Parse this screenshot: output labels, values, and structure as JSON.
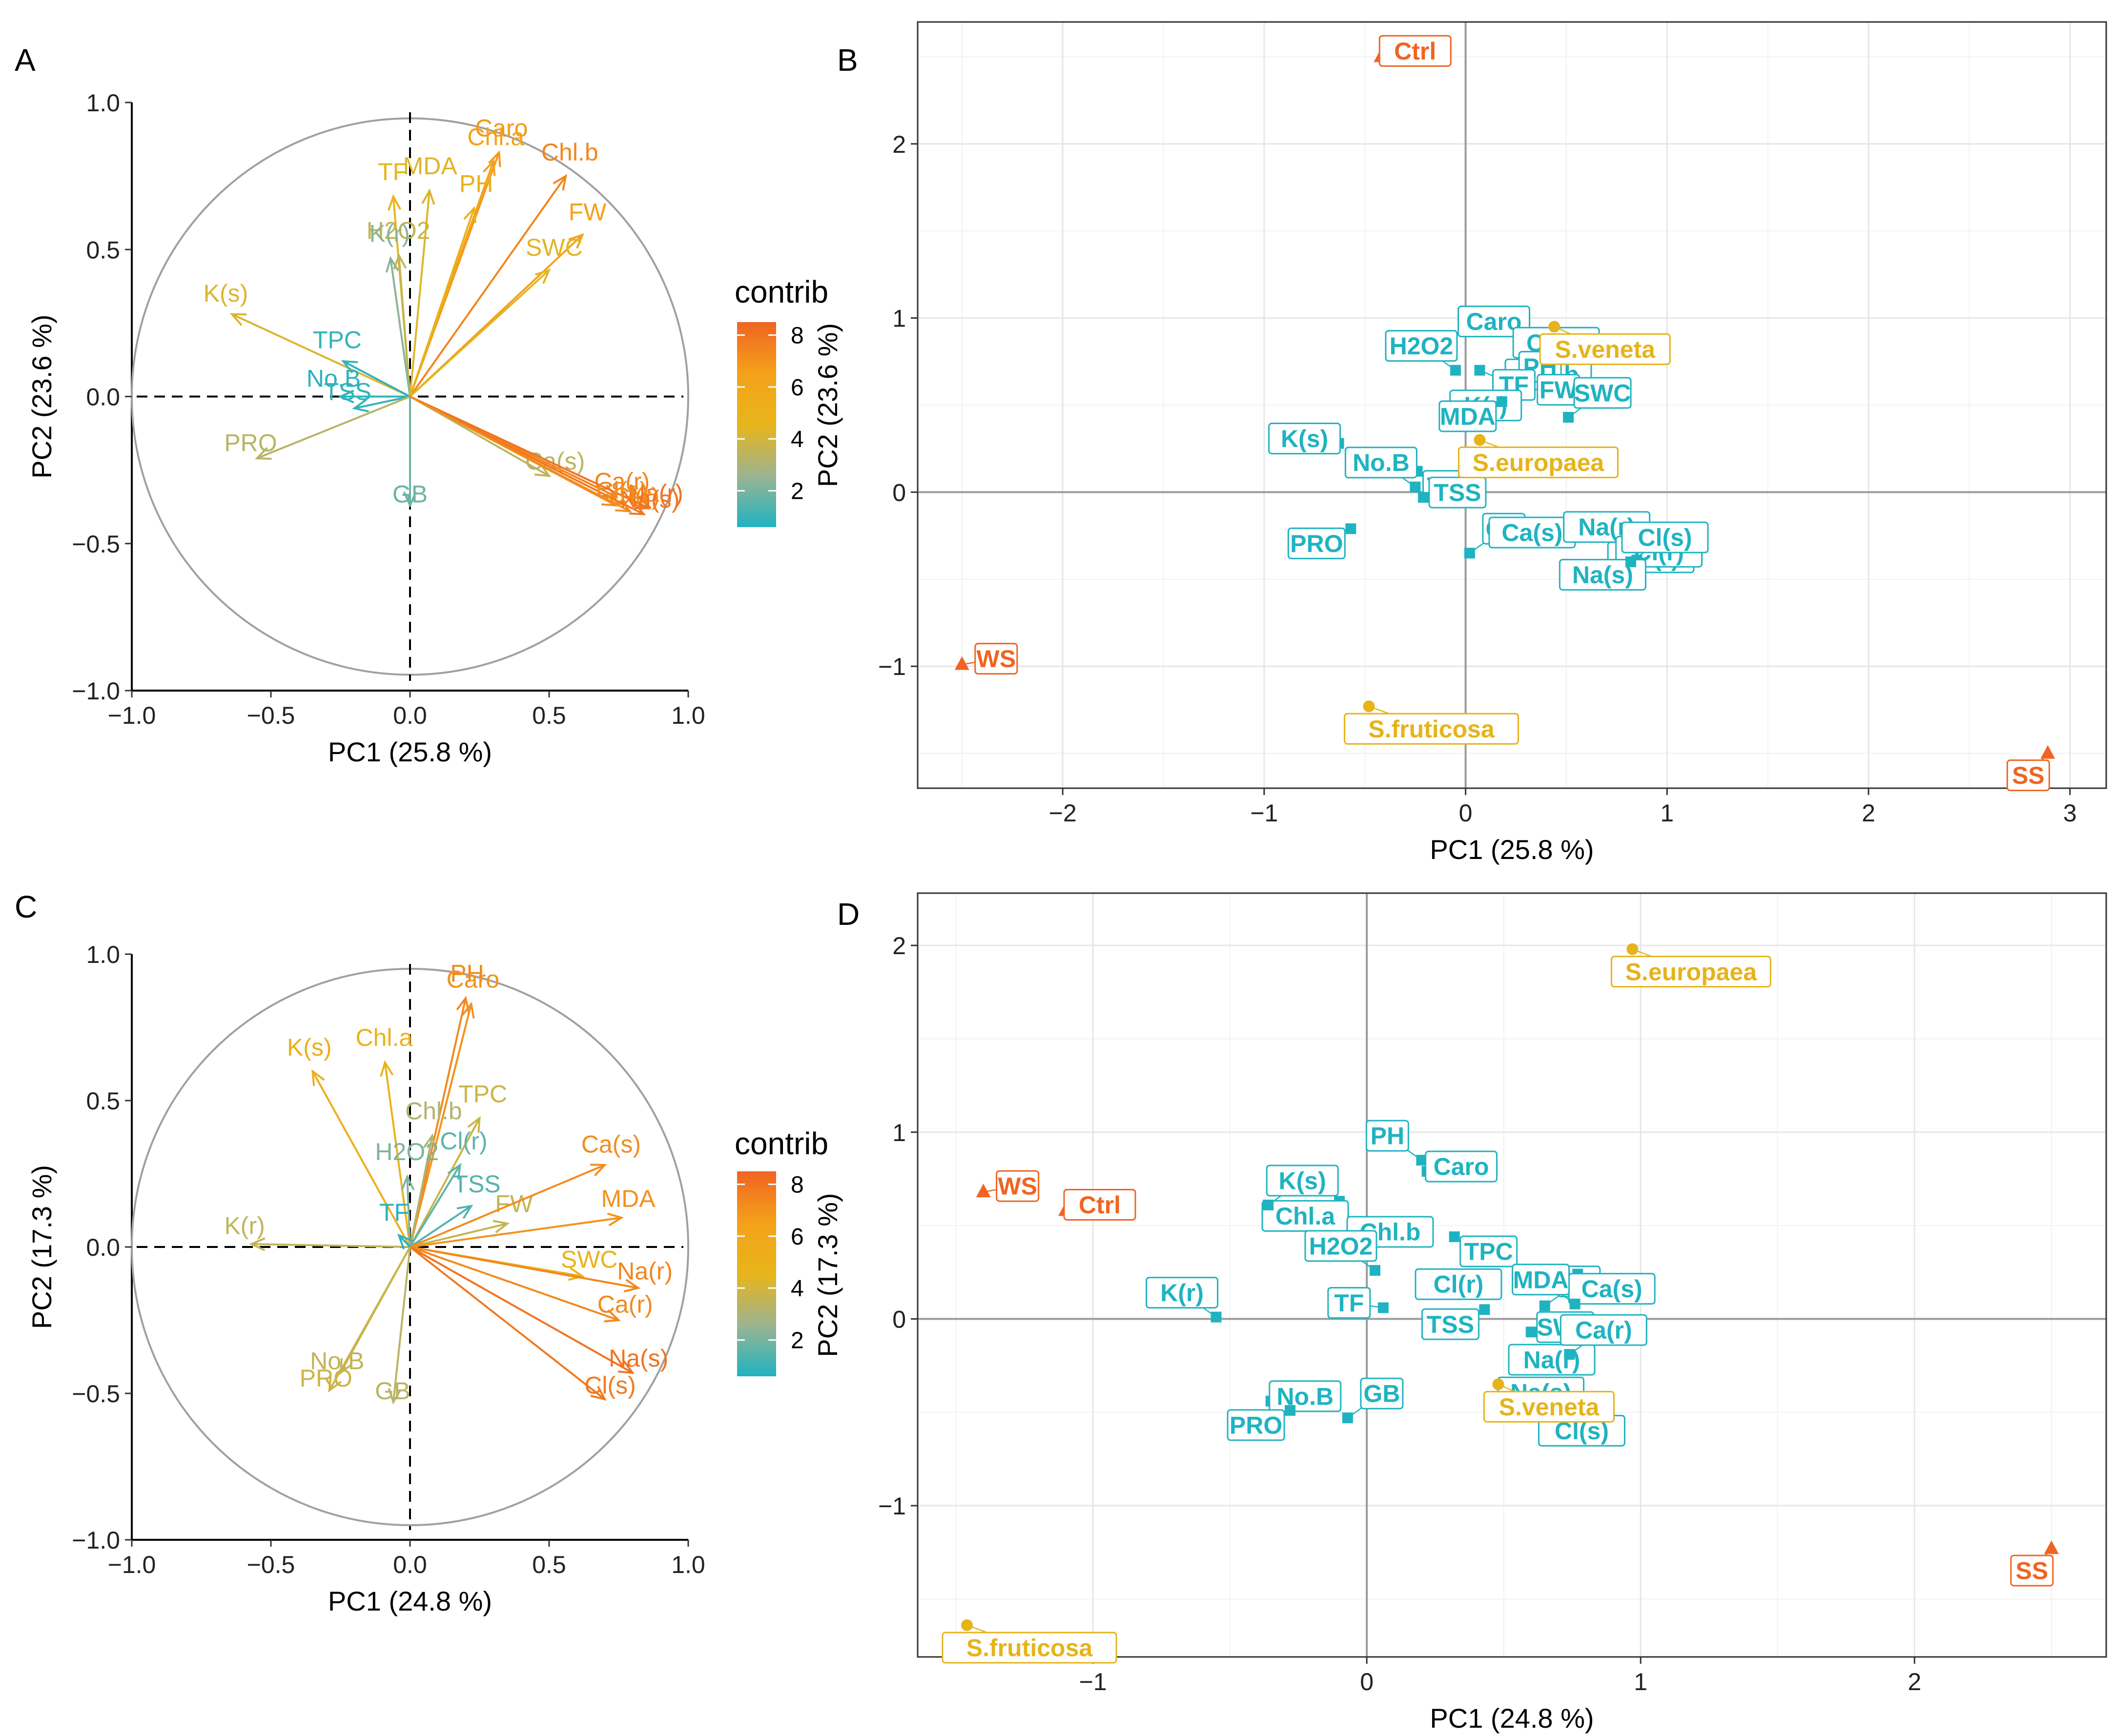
{
  "colors": {
    "teal": "#1fb3c1",
    "orange": "#f06422",
    "gold": "#e6b319",
    "gradient": [
      "#1fb3c1",
      "#9cb490",
      "#e8b51b",
      "#f4a11a",
      "#f06422"
    ]
  },
  "chart_data": [
    {
      "type": "scatter",
      "subtype": "pca-variable-correlation-circle",
      "panel": "A",
      "xlabel": "PC1 (25.8 %)",
      "ylabel": "PC2 (23.6 %)",
      "xlim": [
        -1.0,
        1.0
      ],
      "ylim": [
        -1.0,
        1.0
      ],
      "xticks": [
        -1.0,
        -0.5,
        0.0,
        0.5,
        1.0
      ],
      "yticks": [
        -1.0,
        -0.5,
        0.0,
        0.5,
        1.0
      ],
      "xtick_labels": [
        "−1.0",
        "−0.5",
        "0.0",
        "0.5",
        "1.0"
      ],
      "ytick_labels": [
        "−1.0",
        "−0.5",
        "0.0",
        "0.5",
        "1.0"
      ],
      "legend_title": "contrib",
      "legend_ticks": [
        2,
        4,
        6,
        8
      ],
      "legend_range": [
        0.6,
        8.5
      ],
      "variables": [
        {
          "name": "Caro",
          "x": 0.32,
          "y": 0.83,
          "contrib": 6.8
        },
        {
          "name": "Chl.a",
          "x": 0.3,
          "y": 0.8,
          "contrib": 6.3
        },
        {
          "name": "Chl.b",
          "x": 0.56,
          "y": 0.75,
          "contrib": 7.4
        },
        {
          "name": "PH",
          "x": 0.23,
          "y": 0.64,
          "contrib": 4.8
        },
        {
          "name": "TF",
          "x": -0.06,
          "y": 0.68,
          "contrib": 4.6
        },
        {
          "name": "H2O2",
          "x": -0.04,
          "y": 0.48,
          "contrib": 3.6
        },
        {
          "name": "K(r)",
          "x": -0.07,
          "y": 0.47,
          "contrib": 2.3
        },
        {
          "name": "MDA",
          "x": 0.07,
          "y": 0.7,
          "contrib": 4.3
        },
        {
          "name": "FW",
          "x": 0.62,
          "y": 0.55,
          "contrib": 6.5
        },
        {
          "name": "SWC",
          "x": 0.5,
          "y": 0.43,
          "contrib": 4.4
        },
        {
          "name": "K(s)",
          "x": -0.64,
          "y": 0.28,
          "contrib": 4.2
        },
        {
          "name": "TPC",
          "x": -0.24,
          "y": 0.12,
          "contrib": 0.9
        },
        {
          "name": "No.B",
          "x": -0.25,
          "y": 0.0,
          "contrib": 0.8
        },
        {
          "name": "TSS",
          "x": -0.2,
          "y": -0.04,
          "contrib": 0.9
        },
        {
          "name": "PRO",
          "x": -0.55,
          "y": -0.21,
          "contrib": 3.3
        },
        {
          "name": "GB",
          "x": 0.0,
          "y": -0.37,
          "contrib": 1.8
        },
        {
          "name": "Ca(s)",
          "x": 0.5,
          "y": -0.27,
          "contrib": 3.4
        },
        {
          "name": "Ca(r)",
          "x": 0.74,
          "y": -0.34,
          "contrib": 7.4
        },
        {
          "name": "Na(r)",
          "x": 0.86,
          "y": -0.38,
          "contrib": 8.0
        },
        {
          "name": "Cl(r)",
          "x": 0.79,
          "y": -0.39,
          "contrib": 7.2
        },
        {
          "name": "Na(s)",
          "x": 0.84,
          "y": -0.4,
          "contrib": 7.9
        },
        {
          "name": "Cl(s)",
          "x": 0.74,
          "y": -0.37,
          "contrib": 7.2
        }
      ]
    },
    {
      "type": "scatter",
      "subtype": "pca-biplot-labelled",
      "panel": "B",
      "xlabel": "PC1 (25.8 %)",
      "ylabel": "PC2 (23.6 %)",
      "xlim": [
        -2.72,
        3.18
      ],
      "ylim": [
        -1.7,
        2.7
      ],
      "xticks": [
        -2,
        -1,
        0,
        1,
        2,
        3
      ],
      "yticks": [
        -1,
        0,
        1,
        2
      ],
      "xtick_labels": [
        "−2",
        "−1",
        "0",
        "1",
        "2",
        "3"
      ],
      "ytick_labels": [
        "−1",
        "0",
        "1",
        "2"
      ],
      "treatments": [
        {
          "name": "Ctrl",
          "x": -0.42,
          "y": 2.5
        },
        {
          "name": "WS",
          "x": -2.5,
          "y": -0.99
        },
        {
          "name": "SS",
          "x": 2.89,
          "y": -1.5
        }
      ],
      "species": [
        {
          "name": "S.veneta",
          "x": 0.44,
          "y": 0.95
        },
        {
          "name": "S.europaea",
          "x": 0.07,
          "y": 0.3
        },
        {
          "name": "S.fruticosa",
          "x": -0.48,
          "y": -1.23
        }
      ],
      "variables": [
        {
          "name": "Caro",
          "x": 0.31,
          "y": 0.84
        },
        {
          "name": "Chl.a",
          "x": 0.28,
          "y": 0.83
        },
        {
          "name": "Chl.b",
          "x": 0.58,
          "y": 0.76
        },
        {
          "name": "PH",
          "x": 0.2,
          "y": 0.58
        },
        {
          "name": "FW",
          "x": 0.63,
          "y": 0.56
        },
        {
          "name": "TF",
          "x": 0.07,
          "y": 0.7
        },
        {
          "name": "H2O2",
          "x": -0.05,
          "y": 0.7
        },
        {
          "name": "K(r)",
          "x": -0.07,
          "y": 0.47
        },
        {
          "name": "MDA",
          "x": 0.18,
          "y": 0.52
        },
        {
          "name": "SWC",
          "x": 0.51,
          "y": 0.43
        },
        {
          "name": "K(s)",
          "x": -0.63,
          "y": 0.28
        },
        {
          "name": "TPC",
          "x": -0.24,
          "y": 0.12
        },
        {
          "name": "No.B",
          "x": -0.25,
          "y": 0.03
        },
        {
          "name": "TSS",
          "x": -0.21,
          "y": -0.03
        },
        {
          "name": "PRO",
          "x": -0.57,
          "y": -0.21
        },
        {
          "name": "GB",
          "x": 0.02,
          "y": -0.35
        },
        {
          "name": "Ca(s)",
          "x": 0.5,
          "y": -0.26
        },
        {
          "name": "Ca(r)",
          "x": 0.75,
          "y": -0.29
        },
        {
          "name": "Na(r)",
          "x": 0.87,
          "y": -0.34
        },
        {
          "name": "Cl(r)",
          "x": 0.79,
          "y": -0.37
        },
        {
          "name": "Na(s)",
          "x": 0.85,
          "y": -0.39
        },
        {
          "name": "Cl(s)",
          "x": 0.82,
          "y": -0.4
        }
      ]
    },
    {
      "type": "scatter",
      "subtype": "pca-variable-correlation-circle",
      "panel": "C",
      "xlabel": "PC1 (24.8 %)",
      "ylabel": "PC2 (17.3 %)",
      "xlim": [
        -1.0,
        1.0
      ],
      "ylim": [
        -1.0,
        1.0
      ],
      "xticks": [
        -1.0,
        -0.5,
        0.0,
        0.5,
        1.0
      ],
      "yticks": [
        -1.0,
        -0.5,
        0.0,
        0.5,
        1.0
      ],
      "xtick_labels": [
        "−1.0",
        "−0.5",
        "0.0",
        "0.5",
        "1.0"
      ],
      "ytick_labels": [
        "−1.0",
        "−0.5",
        "0.0",
        "0.5",
        "1.0"
      ],
      "legend_title": "contrib",
      "legend_ticks": [
        2,
        4,
        6,
        8
      ],
      "legend_range": [
        0.6,
        8.5
      ],
      "variables": [
        {
          "name": "PH",
          "x": 0.2,
          "y": 0.85,
          "contrib": 7.3
        },
        {
          "name": "Caro",
          "x": 0.22,
          "y": 0.83,
          "contrib": 7.0
        },
        {
          "name": "Chl.a",
          "x": -0.09,
          "y": 0.63,
          "contrib": 4.8
        },
        {
          "name": "K(s)",
          "x": -0.35,
          "y": 0.6,
          "contrib": 5.2
        },
        {
          "name": "Chl.b",
          "x": 0.08,
          "y": 0.38,
          "contrib": 3.1
        },
        {
          "name": "TPC",
          "x": 0.25,
          "y": 0.44,
          "contrib": 3.8
        },
        {
          "name": "H2O2",
          "x": -0.01,
          "y": 0.24,
          "contrib": 2.1
        },
        {
          "name": "Cl(r)",
          "x": 0.18,
          "y": 0.28,
          "contrib": 1.6
        },
        {
          "name": "TSS",
          "x": 0.22,
          "y": 0.14,
          "contrib": 1.4
        },
        {
          "name": "FW",
          "x": 0.35,
          "y": 0.08,
          "contrib": 3.6
        },
        {
          "name": "Ca(s)",
          "x": 0.7,
          "y": 0.28,
          "contrib": 7.2
        },
        {
          "name": "MDA",
          "x": 0.76,
          "y": 0.1,
          "contrib": 7.0
        },
        {
          "name": "SWC",
          "x": 0.62,
          "y": -0.1,
          "contrib": 4.7
        },
        {
          "name": "Na(r)",
          "x": 0.82,
          "y": -0.14,
          "contrib": 7.4
        },
        {
          "name": "Ca(r)",
          "x": 0.75,
          "y": -0.25,
          "contrib": 7.3
        },
        {
          "name": "Na(s)",
          "x": 0.8,
          "y": -0.43,
          "contrib": 8.0
        },
        {
          "name": "Cl(s)",
          "x": 0.7,
          "y": -0.52,
          "contrib": 7.8
        },
        {
          "name": "K(r)",
          "x": -0.57,
          "y": 0.01,
          "contrib": 3.5
        },
        {
          "name": "No.B",
          "x": -0.25,
          "y": -0.43,
          "contrib": 3.5
        },
        {
          "name": "PRO",
          "x": -0.29,
          "y": -0.49,
          "contrib": 3.8
        },
        {
          "name": "GB",
          "x": -0.06,
          "y": -0.53,
          "contrib": 3.3
        },
        {
          "name": "TF",
          "x": -0.04,
          "y": 0.04,
          "contrib": 0.8
        }
      ]
    },
    {
      "type": "scatter",
      "subtype": "pca-biplot-labelled",
      "panel": "D",
      "xlabel": "PC1 (24.8 %)",
      "ylabel": "PC2 (17.3 %)",
      "xlim": [
        -1.64,
        2.7
      ],
      "ylim": [
        -1.81,
        2.28
      ],
      "xticks": [
        -1,
        0,
        1,
        2
      ],
      "yticks": [
        -1,
        0,
        1,
        2
      ],
      "xtick_labels": [
        "−1",
        "0",
        "1",
        "2"
      ],
      "ytick_labels": [
        "−1",
        "0",
        "1",
        "2"
      ],
      "treatments": [
        {
          "name": "WS",
          "x": -1.4,
          "y": 0.68
        },
        {
          "name": "Ctrl",
          "x": -1.1,
          "y": 0.58
        },
        {
          "name": "SS",
          "x": 2.5,
          "y": -1.23
        }
      ],
      "species": [
        {
          "name": "S.europaea",
          "x": 0.97,
          "y": 1.98
        },
        {
          "name": "S.veneta",
          "x": 0.48,
          "y": -0.35
        },
        {
          "name": "S.fruticosa",
          "x": -1.46,
          "y": -1.64
        }
      ],
      "variables": [
        {
          "name": "PH",
          "x": 0.2,
          "y": 0.85
        },
        {
          "name": "Caro",
          "x": 0.22,
          "y": 0.79
        },
        {
          "name": "Chl.a",
          "x": -0.1,
          "y": 0.63
        },
        {
          "name": "K(s)",
          "x": -0.36,
          "y": 0.61
        },
        {
          "name": "Chl.b",
          "x": 0.21,
          "y": 0.44
        },
        {
          "name": "TPC",
          "x": 0.32,
          "y": 0.44
        },
        {
          "name": "H2O2",
          "x": 0.03,
          "y": 0.26
        },
        {
          "name": "Cl(r)",
          "x": 0.21,
          "y": 0.16
        },
        {
          "name": "TSS",
          "x": 0.43,
          "y": 0.05
        },
        {
          "name": "FW",
          "x": 0.65,
          "y": 0.07
        },
        {
          "name": "TF",
          "x": 0.06,
          "y": 0.06
        },
        {
          "name": "Ca(s)",
          "x": 0.77,
          "y": 0.24
        },
        {
          "name": "MDA",
          "x": 0.76,
          "y": 0.08
        },
        {
          "name": "SWC",
          "x": 0.6,
          "y": -0.07
        },
        {
          "name": "Na(r)",
          "x": 0.8,
          "y": -0.14
        },
        {
          "name": "Ca(r)",
          "x": 0.74,
          "y": -0.19
        },
        {
          "name": "Na(s)",
          "x": 0.76,
          "y": -0.42
        },
        {
          "name": "Cl(s)",
          "x": 0.66,
          "y": -0.52
        },
        {
          "name": "K(r)",
          "x": -0.55,
          "y": 0.01
        },
        {
          "name": "No.B",
          "x": -0.35,
          "y": -0.44
        },
        {
          "name": "PRO",
          "x": -0.28,
          "y": -0.49
        },
        {
          "name": "GB",
          "x": -0.07,
          "y": -0.53
        }
      ]
    }
  ]
}
